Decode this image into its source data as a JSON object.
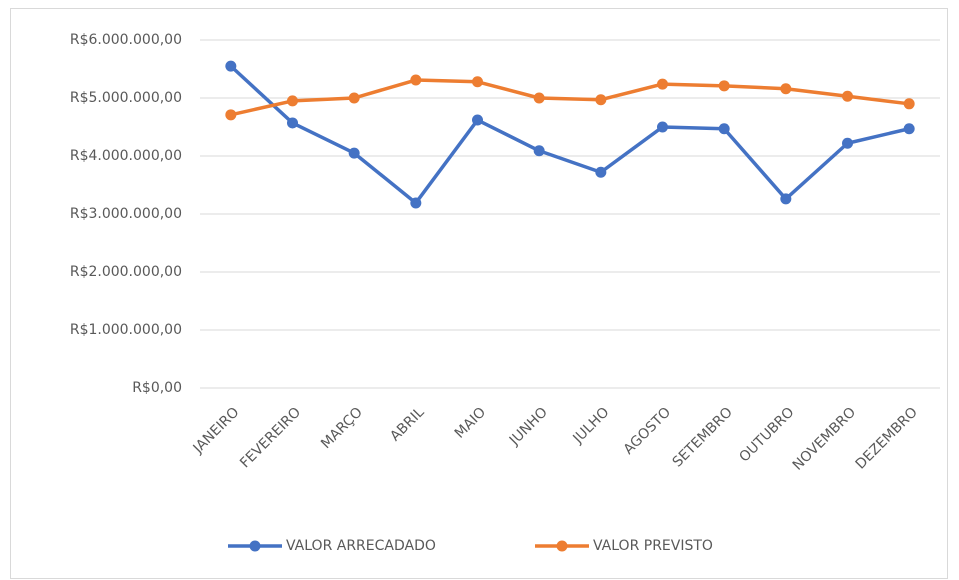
{
  "chart_data": {
    "type": "line",
    "categories": [
      "JANEIRO",
      "FEVEREIRO",
      "MARÇO",
      "ABRIL",
      "MAIO",
      "JUNHO",
      "JULHO",
      "AGOSTO",
      "SETEMBRO",
      "OUTUBRO",
      "NOVEMBRO",
      "DEZEMBRO"
    ],
    "series": [
      {
        "name": "VALOR ARRECADADO",
        "color": "#4472c4",
        "values": [
          5550000,
          4570000,
          4050000,
          3190000,
          4620000,
          4090000,
          3720000,
          4500000,
          4470000,
          3260000,
          4220000,
          4470000
        ]
      },
      {
        "name": "VALOR PREVISTO",
        "color": "#ed7d31",
        "values": [
          4710000,
          4950000,
          5000000,
          5310000,
          5280000,
          5000000,
          4970000,
          5240000,
          5210000,
          5160000,
          5030000,
          4900000
        ]
      }
    ],
    "ylim": [
      0,
      6000000
    ],
    "yticks": [
      {
        "value": 0,
        "label": "R$0,00"
      },
      {
        "value": 1000000,
        "label": "R$1.000.000,00"
      },
      {
        "value": 2000000,
        "label": "R$2.000.000,00"
      },
      {
        "value": 3000000,
        "label": "R$3.000.000,00"
      },
      {
        "value": 4000000,
        "label": "R$4.000.000,00"
      },
      {
        "value": 5000000,
        "label": "R$5.000.000,00"
      },
      {
        "value": 6000000,
        "label": "R$6.000.000,00"
      }
    ],
    "grid": true,
    "legend": "bottom"
  }
}
